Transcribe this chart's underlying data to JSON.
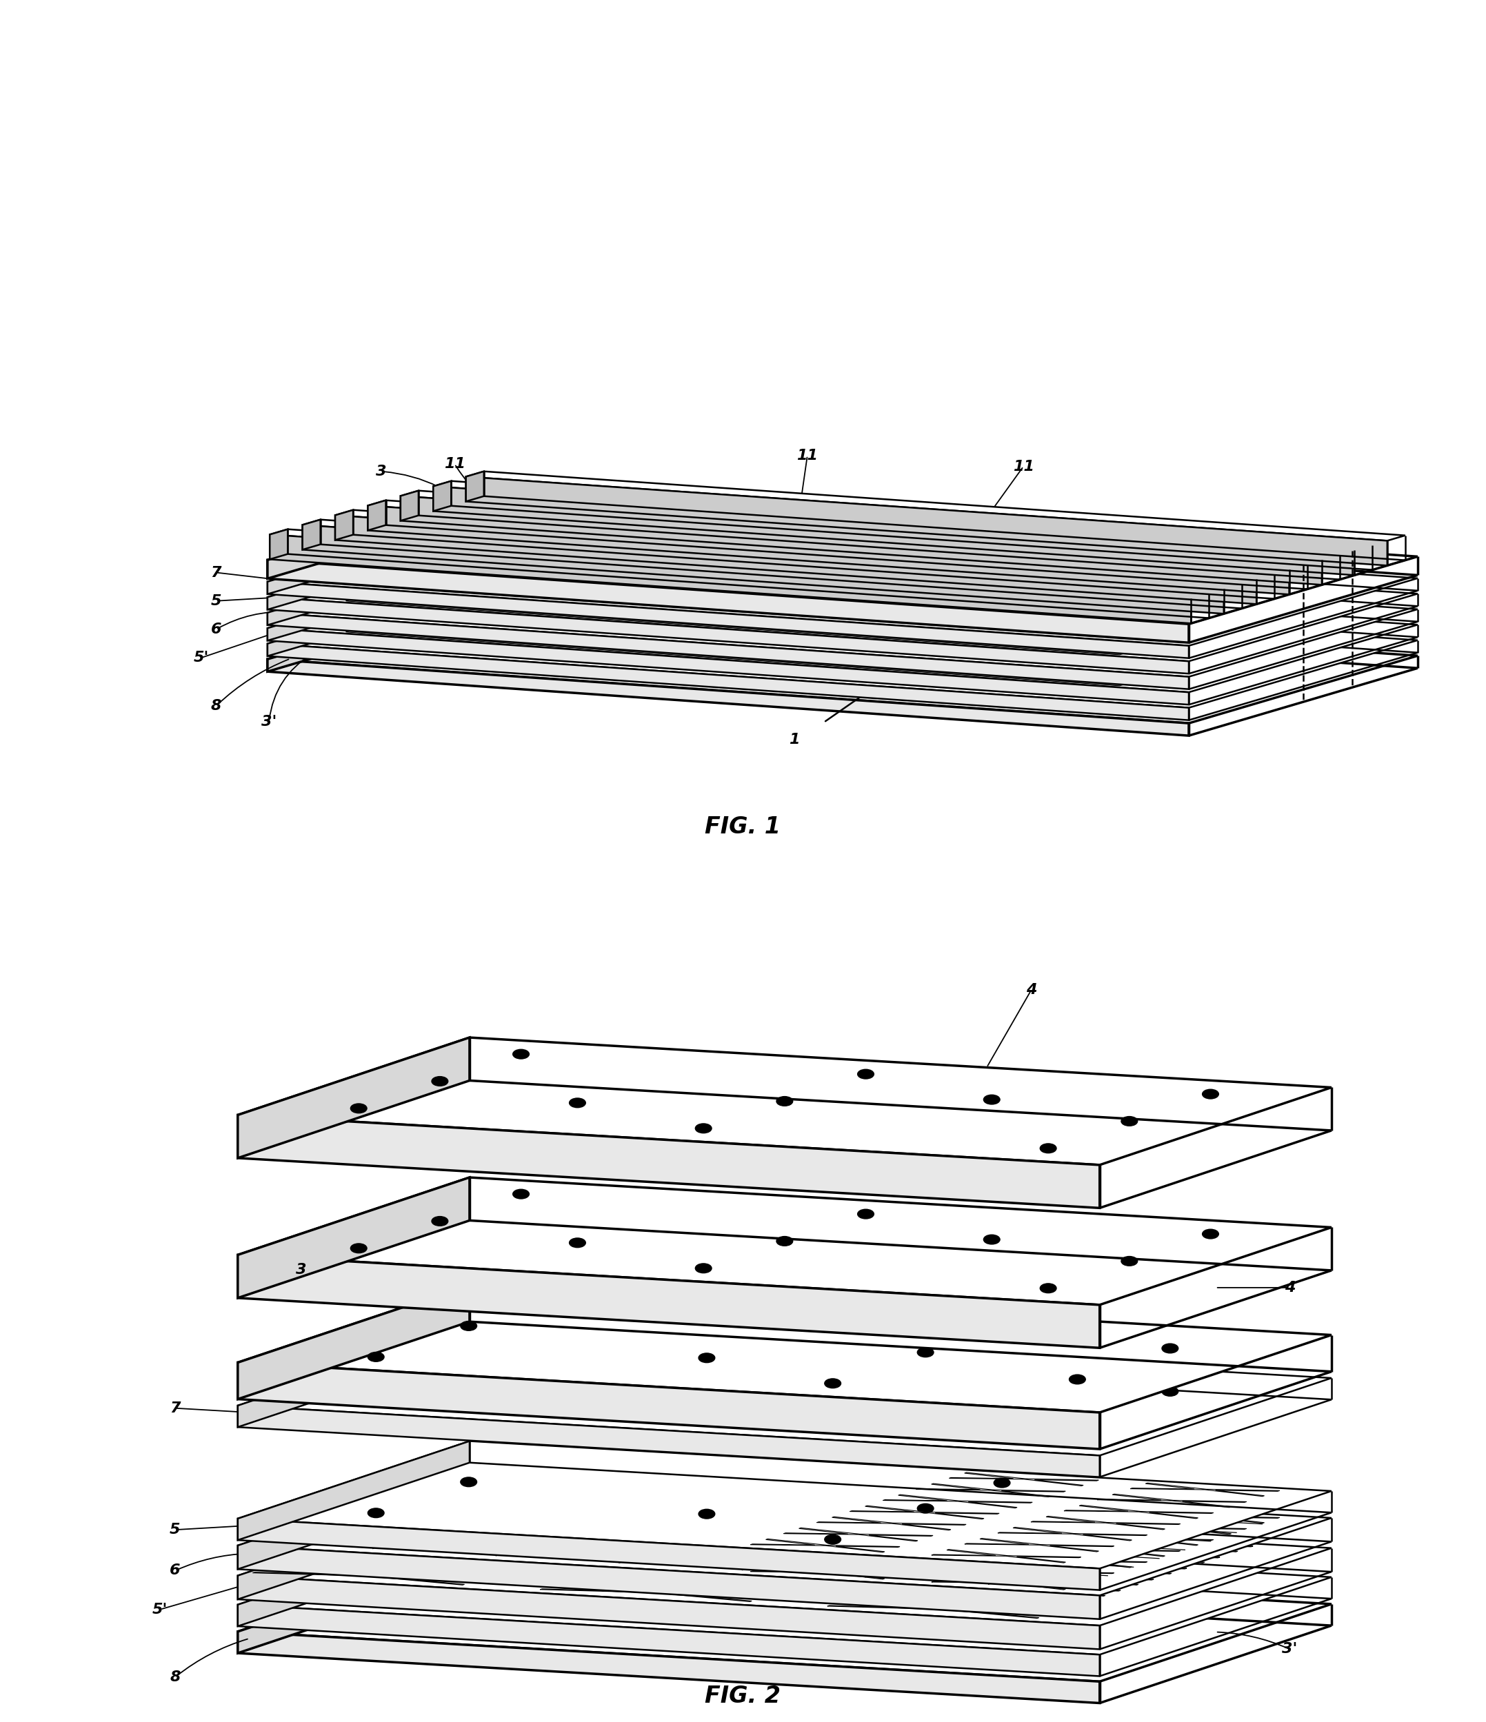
{
  "bg_color": "#ffffff",
  "lw": 1.8,
  "lw2": 2.5,
  "fig1_title": "FIG. 1",
  "fig2_title": "FIG. 2"
}
